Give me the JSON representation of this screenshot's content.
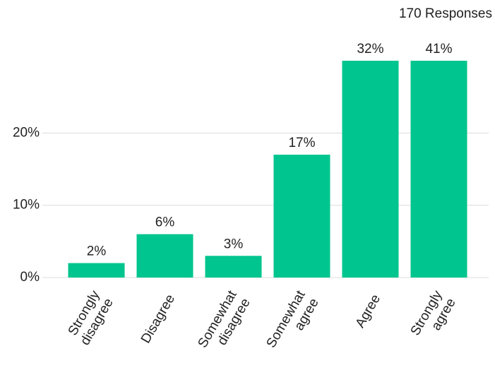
{
  "chart_data": {
    "type": "bar",
    "annotation": "170 Responses",
    "categories": [
      "Strongly disagree",
      "Disagree",
      "Somewhat disagree",
      "Somewhat agree",
      "Agree",
      "Strongly agree"
    ],
    "values": [
      2,
      6,
      3,
      17,
      32,
      41
    ],
    "value_labels": [
      "2%",
      "6%",
      "3%",
      "17%",
      "32%",
      "41%"
    ],
    "color": "#00c58e",
    "ylim": [
      0,
      30
    ],
    "yticks": [
      {
        "value": 0,
        "label": "0%"
      },
      {
        "value": 10,
        "label": "10%"
      },
      {
        "value": 20,
        "label": "20%"
      }
    ],
    "grid": true
  }
}
